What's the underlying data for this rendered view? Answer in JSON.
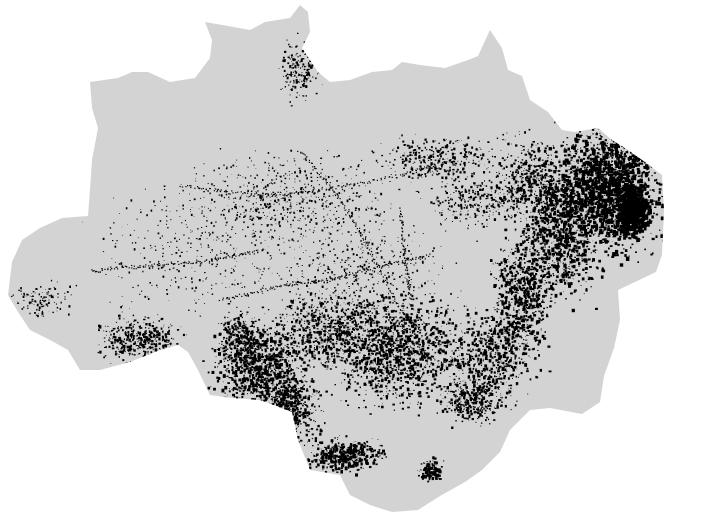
{
  "map": {
    "land_color": "#d3d3d3",
    "mark_color": "#000000",
    "background_color": "#ffffff"
  }
}
